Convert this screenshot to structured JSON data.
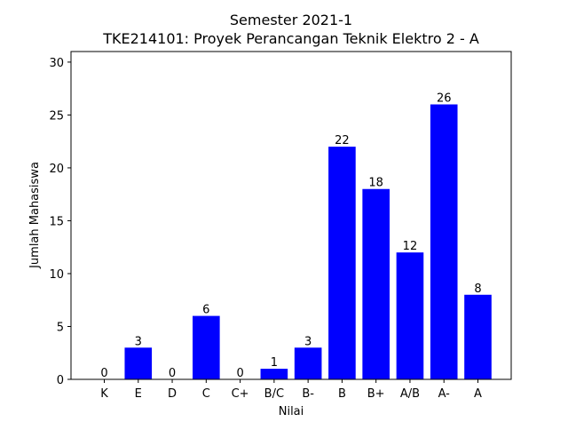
{
  "chart_data": {
    "type": "bar",
    "title": "Semester 2021-1",
    "subtitle": "TKE214101: Proyek Perancangan Teknik Elektro 2 - A",
    "xlabel": "Nilai",
    "ylabel": "Jumlah Mahasiswa",
    "categories": [
      "K",
      "E",
      "D",
      "C",
      "C+",
      "B/C",
      "B-",
      "B",
      "B+",
      "A/B",
      "A-",
      "A"
    ],
    "values": [
      0,
      3,
      0,
      6,
      0,
      1,
      3,
      22,
      18,
      12,
      26,
      8
    ],
    "ylim": [
      0,
      31
    ],
    "yticks": [
      0,
      5,
      10,
      15,
      20,
      25,
      30
    ],
    "bar_color": "#0000ff",
    "grid": false,
    "legend": false
  }
}
